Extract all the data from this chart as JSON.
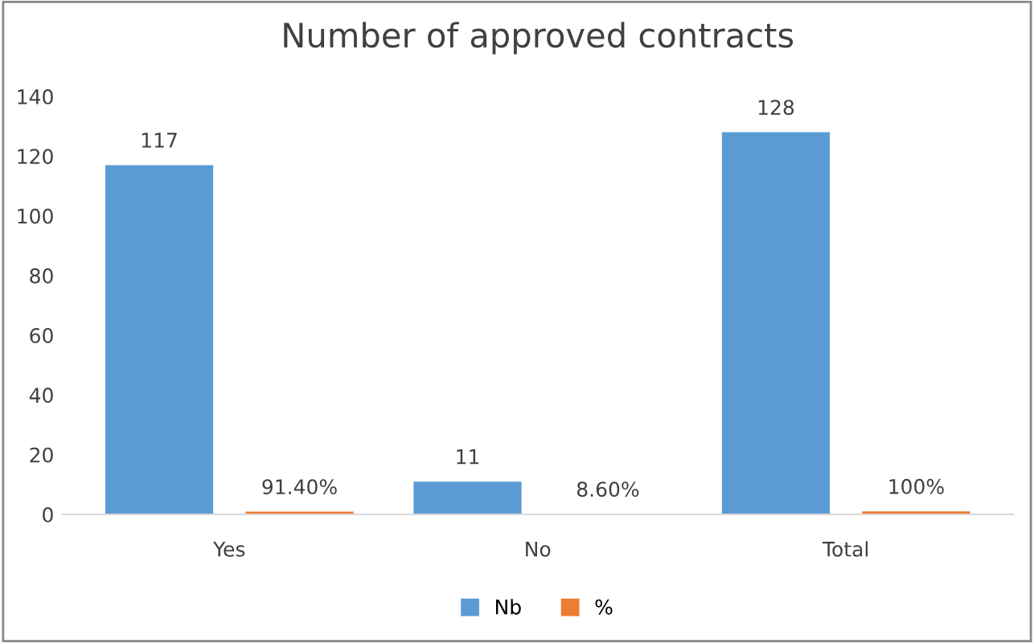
{
  "chart_data": {
    "type": "bar",
    "title": "Number of approved contracts",
    "categories": [
      "Yes",
      "No",
      "Total"
    ],
    "series": [
      {
        "name": "Nb",
        "color": "#5b9bd5",
        "values": [
          117,
          11,
          128
        ],
        "value_labels": [
          "117",
          "11",
          "128"
        ]
      },
      {
        "name": "%",
        "color": "#ed7d31",
        "values": [
          0.914,
          0.086,
          1.0
        ],
        "value_labels": [
          "91.40%",
          "8.60%",
          "100%"
        ]
      }
    ],
    "ylim": [
      0,
      140
    ],
    "yticks": [
      0,
      20,
      40,
      60,
      80,
      100,
      120,
      140
    ],
    "grid": false,
    "legend": "bottom"
  }
}
